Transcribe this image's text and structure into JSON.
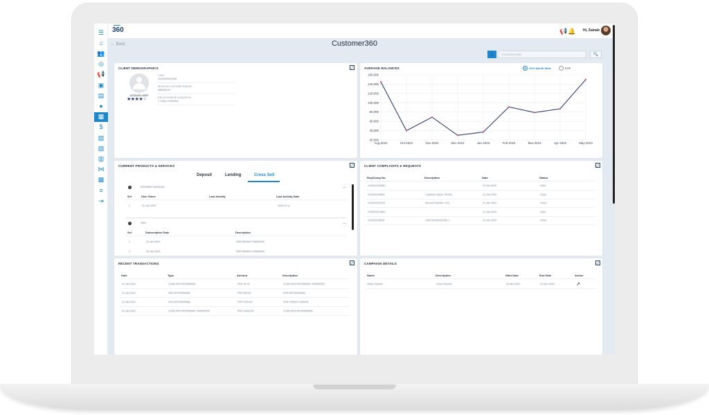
{
  "app": {
    "logo": "360",
    "page_title": "Customer360",
    "back_label": "← Back",
    "greeting": "Hi, Zainab",
    "search_placeholder": "1120200497055"
  },
  "sidebar": {
    "items": [
      "dashboard-icon",
      "home-icon",
      "users-icon",
      "globe-icon",
      "megaphone-icon",
      "user-card-icon",
      "document-icon",
      "location-icon",
      "customer360-icon",
      "money-icon",
      "file-icon",
      "file-check-icon",
      "reports-icon",
      "network-icon",
      "folder-icon",
      "queue-icon",
      "logout-icon"
    ],
    "active_index": 8
  },
  "demographics": {
    "title": "CLIENT DEMOGRAPHICS",
    "client_name": "AFSHAN ARIF",
    "rating": 4,
    "rating_max": 5,
    "fields": [
      {
        "label": "CNIC",
        "value": "1120200497005"
      },
      {
        "label": "MONTHLY INCOME RANGE",
        "value": "480000.00"
      },
      {
        "label": "RELATIONSHIP DURATION",
        "value": "1 Years 2 Months"
      }
    ]
  },
  "balances": {
    "title": "AVERAGE BALANCES",
    "options": [
      "AVG Month Wise",
      "EOP"
    ],
    "selected": "AVG Month Wise"
  },
  "chart_data": {
    "type": "line",
    "categories": [
      "Aug-2022",
      "Oct-2022",
      "Nov-2022",
      "Dec-2022",
      "Jan-2023",
      "Feb-2023",
      "Mar-2023",
      "Apr-2023",
      "May-2023"
    ],
    "values": [
      145000,
      40000,
      69000,
      30000,
      37000,
      91000,
      79000,
      87000,
      150000
    ],
    "y_ticks": [
      "20,000",
      "40,000",
      "60,000",
      "80,000",
      "100,000",
      "120,000",
      "140,000",
      "160,000"
    ],
    "ylim": [
      20000,
      160000
    ],
    "grid": true,
    "line_color": "#2f3a73",
    "point_color": "#e04b7a"
  },
  "products": {
    "title": "CURRENT PRODUCTS & SERVICES",
    "tabs": [
      "Deposit",
      "Lending",
      "Cross Sell"
    ],
    "active_tab": "Cross Sell",
    "sections": [
      {
        "name": "INTERNET BANKING",
        "headers": [
          "Sr#",
          "User Since",
          "Last Activity",
          "Last Activity Date"
        ],
        "rows": [
          [
            "1",
            "01-Jan-2024",
            "",
            "2024-01-11"
          ]
        ]
      },
      {
        "name": "SMS",
        "headers": [
          "Sr#",
          "Subscription Date",
          "Description"
        ],
        "rows": [
          [
            "1",
            "09-Jan-2024",
            "SMS BRANCH BANKING"
          ],
          [
            "2",
            "09-Jan-2024",
            "SMS BRANCH BANKING"
          ]
        ]
      }
    ]
  },
  "complaints": {
    "title": "CLIENT COMPLAINTS & REQUESTS",
    "headers": [
      "Req/Comp No.",
      "Description",
      "Date",
      "Status"
    ],
    "rows": [
      [
        "1119011322884",
        "",
        "22-Jan-2024",
        "Open"
      ],
      [
        "1119011116893",
        "Customer Name: ROHA...",
        "21-Jan-2024",
        "Close"
      ],
      [
        "1119011015378",
        "Account Number: 219...",
        "21-Jan-2024",
        "Close"
      ],
      [
        "1119010973661",
        "",
        "21-Jan-2024",
        "Open"
      ],
      [
        "1119011116632",
        "Card Number(5199) 1...",
        "21-Jan-2024",
        "Close"
      ]
    ]
  },
  "transactions": {
    "title": "RECENT TRANSACTIONS",
    "headers": [
      "Date",
      "Type",
      "Amount",
      "Description"
    ],
    "rows": [
      [
        "01-Jan-2021",
        "1LINK ATM INTERBANK",
        "PKR 18.75",
        "1LINK ATM INTERBANK TRANSFER"
      ],
      [
        "01-Jan-2021",
        "ATM WITHDRAWAL",
        "PKR 500.00",
        "ATM WITHDRAWAL"
      ],
      [
        "01-Jan-2021",
        "ATM WITHDRAWAL",
        "PKR 1000.00",
        "ATM TRANS CHARGE"
      ],
      [
        "01-Jan-2021",
        "1LINK ATM INTERBANK TRANSFER",
        "PKR 10000.00",
        "1LINK ATM WITHDRAWAL"
      ]
    ]
  },
  "campaigns": {
    "title": "CAMPAIGN DETAILS",
    "headers": [
      "Name",
      "Description",
      "Start Date",
      "End Date",
      "Action"
    ],
    "rows": [
      [
        "Oluso Deposit",
        "Oluso Deposit",
        "20-Apr-2024",
        "21-Nov-2024",
        ""
      ]
    ]
  }
}
